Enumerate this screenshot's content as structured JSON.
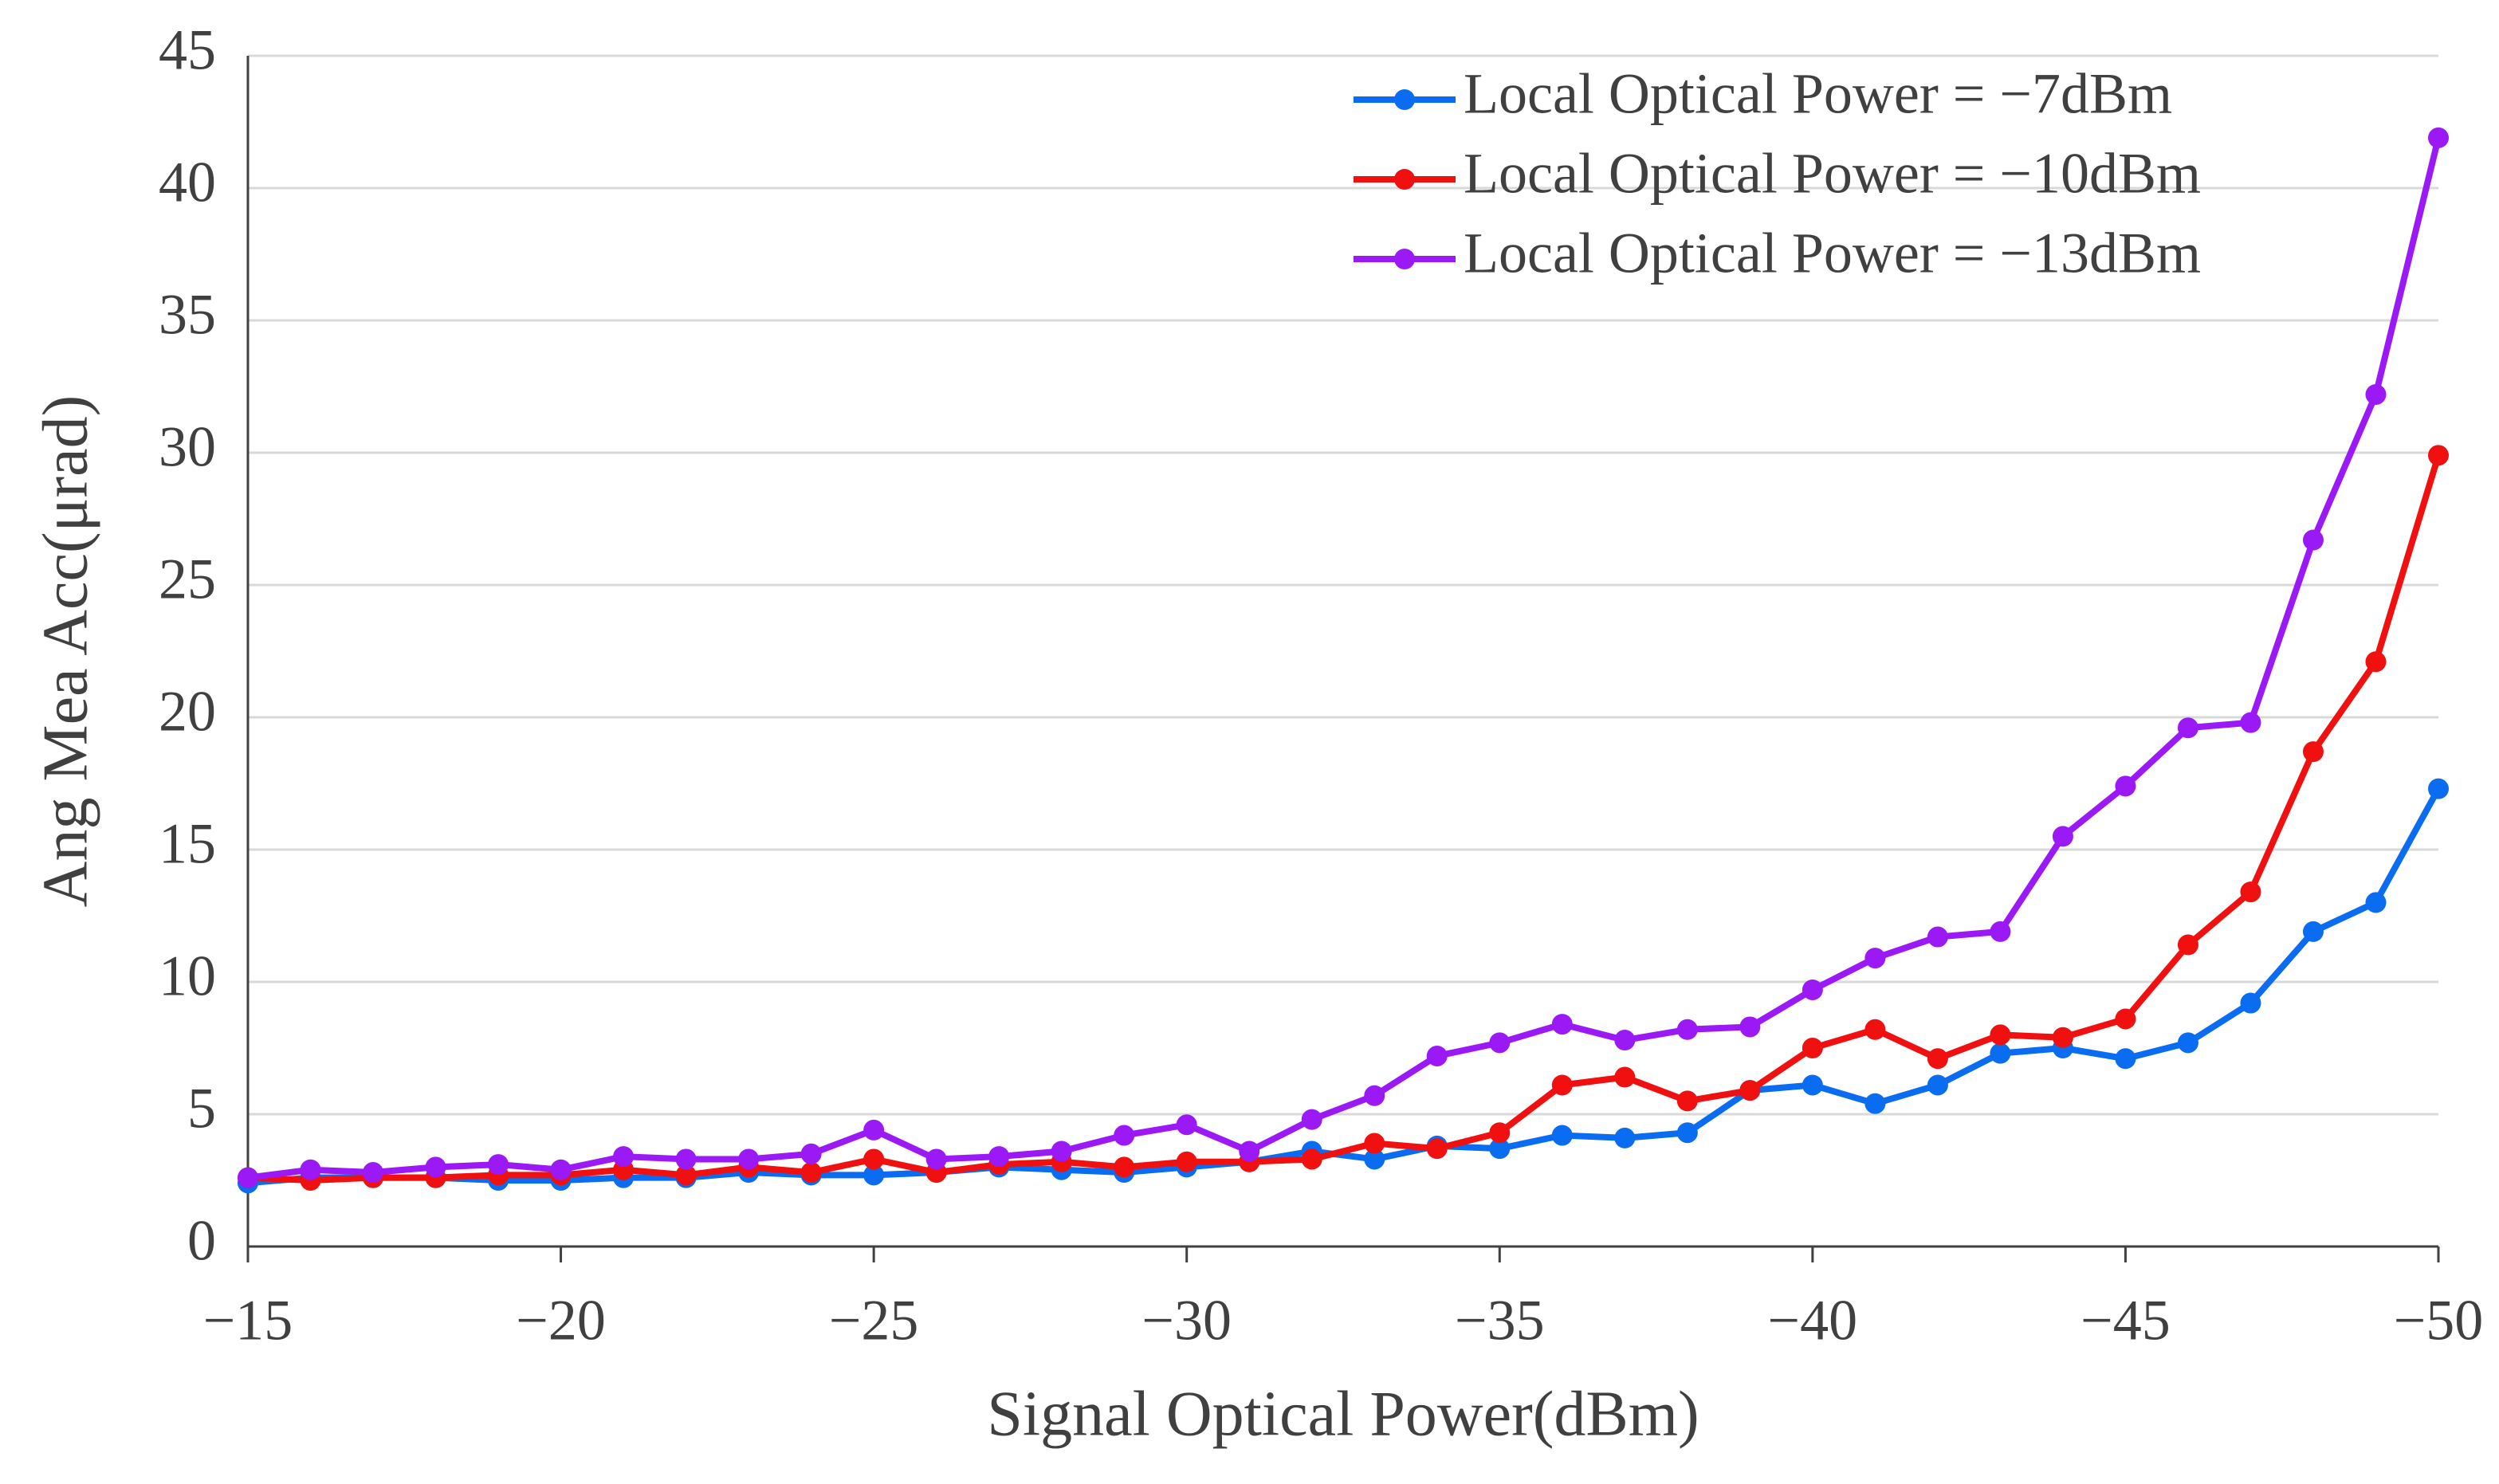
{
  "chart_data": {
    "type": "line",
    "x": [
      -15,
      -16,
      -17,
      -18,
      -19,
      -20,
      -21,
      -22,
      -23,
      -24,
      -25,
      -26,
      -27,
      -28,
      -29,
      -30,
      -31,
      -32,
      -33,
      -34,
      -35,
      -36,
      -37,
      -38,
      -39,
      -40,
      -41,
      -42,
      -43,
      -44,
      -45,
      -46,
      -47,
      -48,
      -49,
      -50
    ],
    "series": [
      {
        "name": "Local Optical Power = −7dBm",
        "color": "#0a6cf0",
        "values": [
          2.4,
          2.6,
          2.6,
          2.6,
          2.5,
          2.5,
          2.6,
          2.6,
          2.8,
          2.7,
          2.7,
          2.8,
          3.0,
          2.9,
          2.8,
          3.0,
          3.2,
          3.6,
          3.3,
          3.8,
          3.7,
          4.2,
          4.1,
          4.3,
          5.9,
          6.1,
          5.4,
          6.1,
          7.3,
          7.5,
          7.1,
          7.7,
          9.2,
          11.9,
          13.0,
          17.3
        ]
      },
      {
        "name": "Local Optical Power = −10dBm",
        "color": "#f01010",
        "values": [
          2.6,
          2.5,
          2.6,
          2.6,
          2.7,
          2.7,
          2.9,
          2.7,
          3.0,
          2.8,
          3.3,
          2.8,
          3.1,
          3.2,
          3.0,
          3.2,
          3.2,
          3.3,
          3.9,
          3.7,
          4.3,
          6.1,
          6.4,
          5.5,
          5.9,
          7.5,
          8.2,
          7.1,
          8.0,
          7.9,
          8.6,
          11.4,
          13.4,
          18.7,
          22.1,
          29.9
        ]
      },
      {
        "name": "Local Optical Power = −13dBm",
        "color": "#9b19f5",
        "values": [
          2.6,
          2.9,
          2.8,
          3.0,
          3.1,
          2.9,
          3.4,
          3.3,
          3.3,
          3.5,
          4.4,
          3.3,
          3.4,
          3.6,
          4.2,
          4.6,
          3.6,
          4.8,
          5.7,
          7.2,
          7.7,
          8.4,
          7.8,
          8.2,
          8.3,
          9.7,
          10.9,
          11.7,
          11.9,
          15.5,
          17.4,
          19.6,
          19.8,
          26.7,
          32.2,
          41.9
        ]
      }
    ],
    "x_label": "Signal Optical Power(dBm)",
    "y_label": "Ang Mea Acc(μrad)",
    "xlim": [
      -15,
      -50
    ],
    "xticks": [
      {
        "value": -15,
        "label": "−15"
      },
      {
        "value": -20,
        "label": "−20"
      },
      {
        "value": -25,
        "label": "−25"
      },
      {
        "value": -30,
        "label": "−30"
      },
      {
        "value": -35,
        "label": "−35"
      },
      {
        "value": -40,
        "label": "−40"
      },
      {
        "value": -45,
        "label": "−45"
      },
      {
        "value": -50,
        "label": "−50"
      }
    ],
    "ylim": [
      0,
      45
    ],
    "yticks": [
      0,
      5,
      10,
      15,
      20,
      25,
      30,
      35,
      40,
      45
    ],
    "grid": true,
    "legend": "upper right"
  }
}
